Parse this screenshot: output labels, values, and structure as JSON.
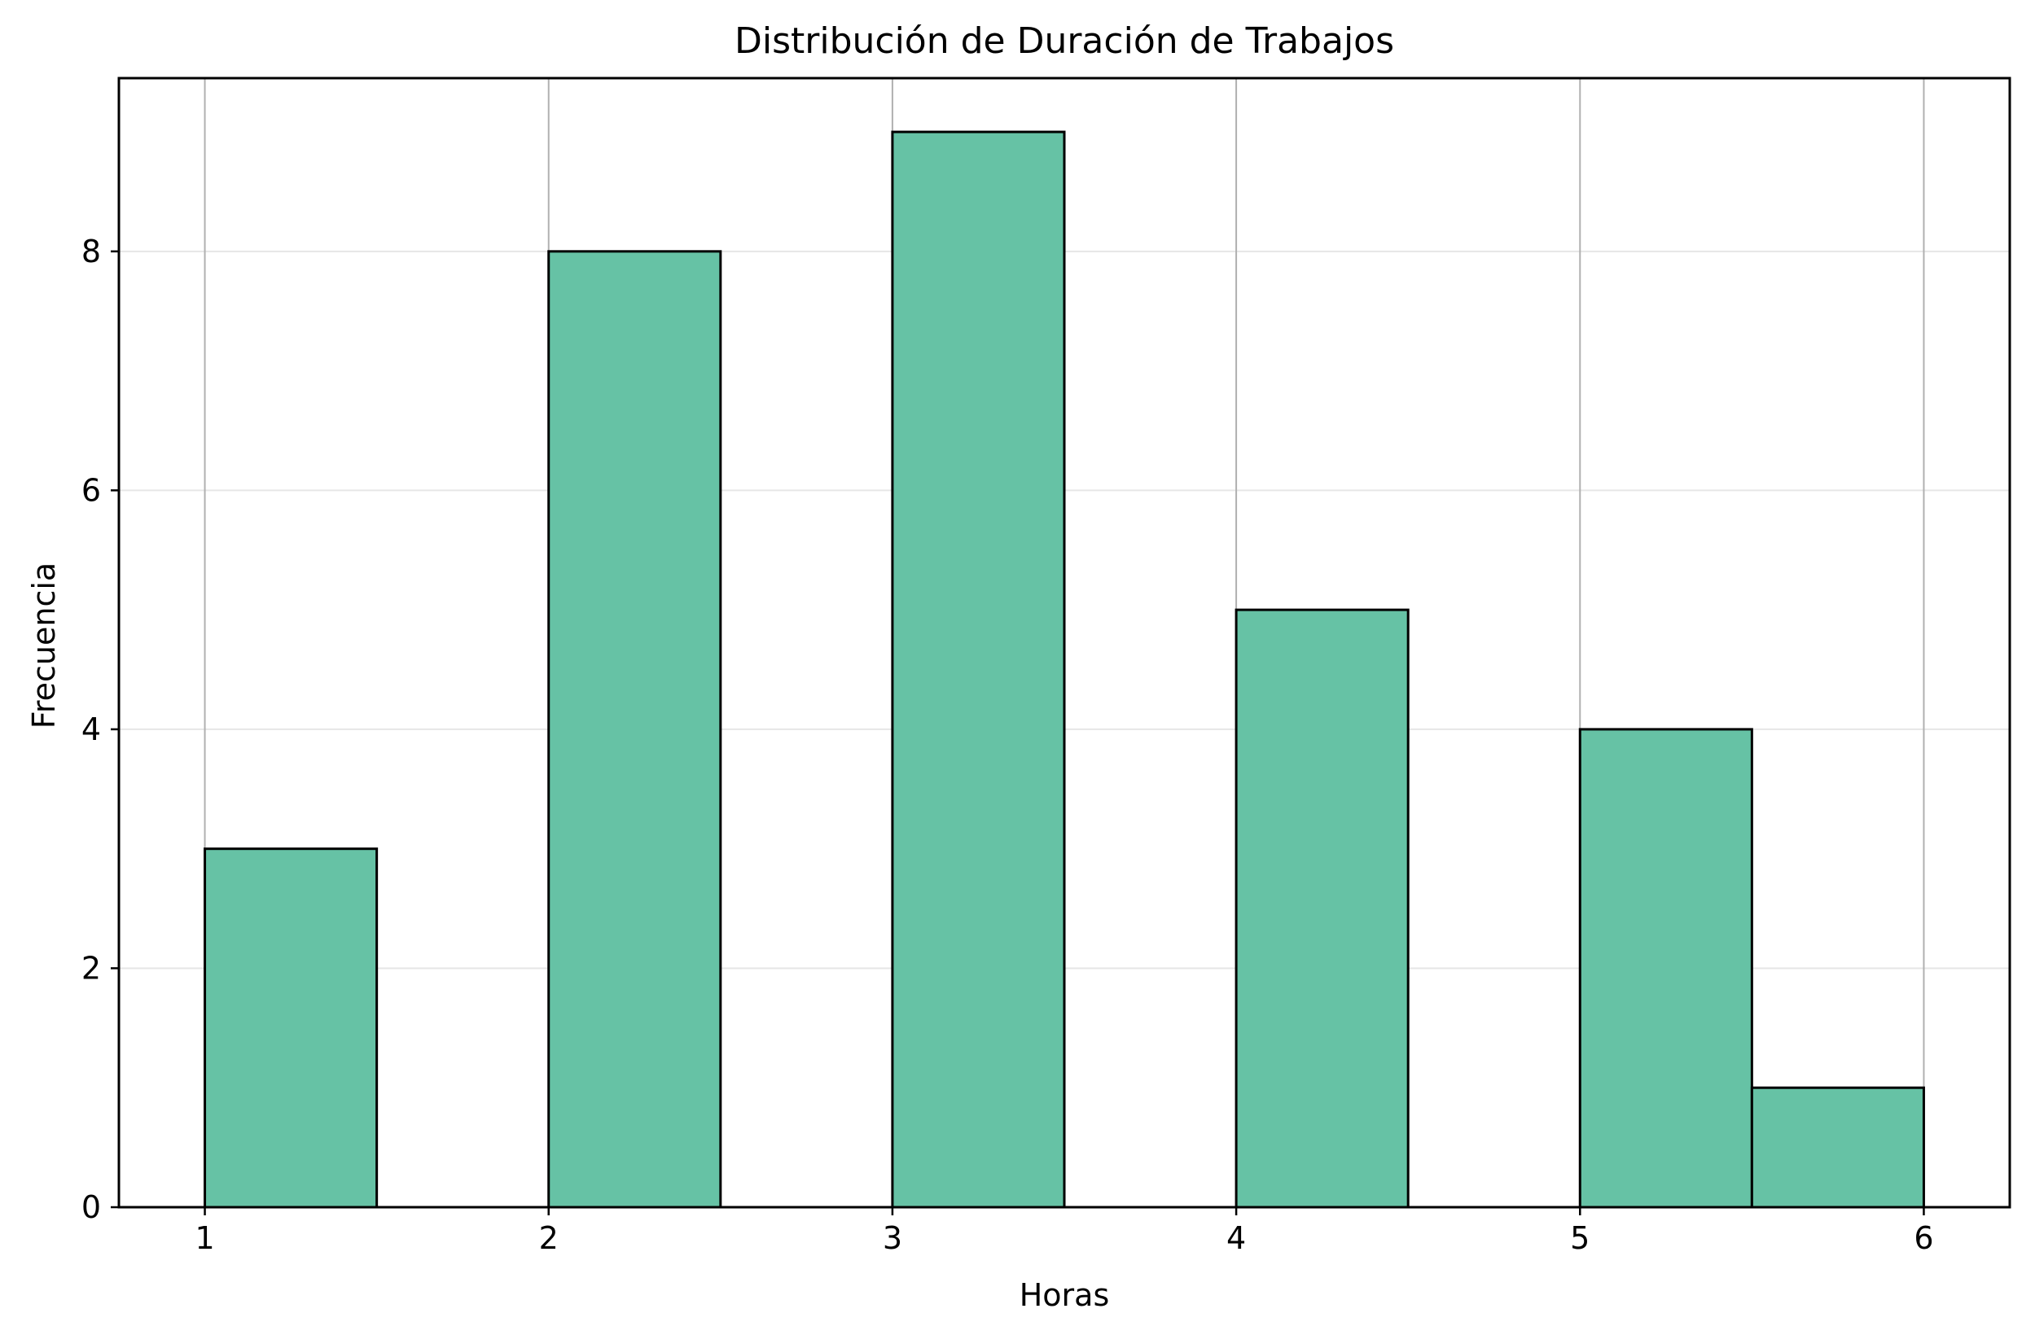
{
  "chart_data": {
    "type": "bar",
    "title": "Distribución de Duración de Trabajos",
    "xlabel": "Horas",
    "ylabel": "Frecuencia",
    "bins": [
      {
        "x0": 1.0,
        "x1": 1.5,
        "value": 3
      },
      {
        "x0": 1.5,
        "x1": 2.0,
        "value": 0
      },
      {
        "x0": 2.0,
        "x1": 2.5,
        "value": 8
      },
      {
        "x0": 2.5,
        "x1": 3.0,
        "value": 0
      },
      {
        "x0": 3.0,
        "x1": 3.5,
        "value": 9
      },
      {
        "x0": 3.5,
        "x1": 4.0,
        "value": 0
      },
      {
        "x0": 4.0,
        "x1": 4.5,
        "value": 5
      },
      {
        "x0": 4.5,
        "x1": 5.0,
        "value": 0
      },
      {
        "x0": 5.0,
        "x1": 5.5,
        "value": 4
      },
      {
        "x0": 5.5,
        "x1": 6.0,
        "value": 1
      }
    ],
    "xlim": [
      0.75,
      6.25
    ],
    "ylim": [
      0,
      9.45
    ],
    "x_ticks": [
      {
        "value": 1,
        "label": "1"
      },
      {
        "value": 2,
        "label": "2"
      },
      {
        "value": 3,
        "label": "3"
      },
      {
        "value": 4,
        "label": "4"
      },
      {
        "value": 5,
        "label": "5"
      },
      {
        "value": 6,
        "label": "6"
      }
    ],
    "y_ticks": [
      {
        "value": 0,
        "label": "0"
      },
      {
        "value": 2,
        "label": "2"
      },
      {
        "value": 4,
        "label": "4"
      },
      {
        "value": 6,
        "label": "6"
      },
      {
        "value": 8,
        "label": "8"
      }
    ],
    "grid": true,
    "colors": {
      "bar_fill": "#66c2a5",
      "bar_edge": "#000000",
      "x_grid": "#b0b0b0",
      "y_grid": "#e6e6e6",
      "axes": "#000000",
      "text": "#000000",
      "background": "#ffffff"
    }
  }
}
